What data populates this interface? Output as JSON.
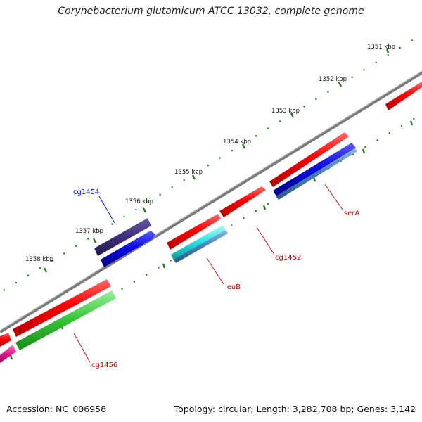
{
  "title": "Corynebacterium glutamicum ATCC 13032, complete genome",
  "ticks": [
    "1351 kbp",
    "1352 kbp",
    "1353 kbp",
    "1354 kbp",
    "1355 kbp",
    "1356 kbp",
    "1357 kbp",
    "1358 kbp"
  ],
  "gene_labels": [
    {
      "name": "cg1454",
      "color": "#0000cc"
    },
    {
      "name": "serA",
      "color": "#cc0000"
    },
    {
      "name": "cg1452",
      "color": "#cc0000"
    },
    {
      "name": "leuB",
      "color": "#cc0000"
    },
    {
      "name": "cg1456",
      "color": "#cc0000"
    }
  ],
  "colors": {
    "backbone": "#7a7a7a",
    "tick": "#1e7a1e",
    "forward_gene": "#e60000",
    "blue_gene": "#0a0ae6",
    "purple_gene": "#3d2f7a",
    "cyan_gene": "#22dede",
    "steel_gene": "#4a7fb5",
    "green_gene": "#33c233",
    "magenta_gene": "#e0168a"
  },
  "footer": {
    "accession": "Accession: NC_006958",
    "stats": "Topology: circular; Length: 3,282,708 bp; Genes: 3,142"
  }
}
